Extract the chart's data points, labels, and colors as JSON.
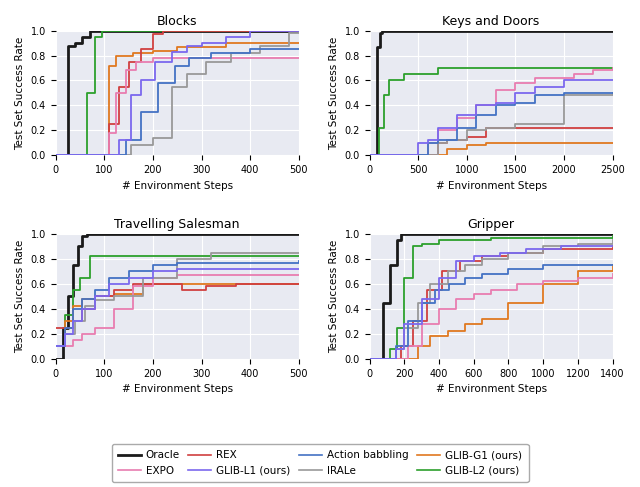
{
  "colors": {
    "Oracle": "#1a1a1a",
    "Action babbling": "#4472c4",
    "EXPO": "#e87db0",
    "IRALe": "#999999",
    "REX": "#d04040",
    "GLIB-G1": "#e07820",
    "GLIB-L1": "#7b68ee",
    "GLIB-L2": "#2ca02c"
  },
  "background_color": "#e8eaf2",
  "xlabel": "# Environment Steps",
  "ylabel": "Test Set Success Rate",
  "blocks": {
    "xlim": [
      0,
      500
    ],
    "ylim": [
      0.0,
      1.05
    ],
    "xticks": [
      0,
      100,
      200,
      300,
      400,
      500
    ],
    "yticks": [
      0.0,
      0.2,
      0.4,
      0.6,
      0.8,
      1.0
    ],
    "Oracle": [
      [
        0,
        0.0
      ],
      [
        25,
        0.88
      ],
      [
        40,
        0.9
      ],
      [
        55,
        0.95
      ],
      [
        70,
        1.0
      ],
      [
        500,
        1.0
      ]
    ],
    "GLIB-L2": [
      [
        0,
        0.0
      ],
      [
        50,
        0.0
      ],
      [
        65,
        0.5
      ],
      [
        80,
        0.95
      ],
      [
        95,
        1.0
      ],
      [
        500,
        1.0
      ]
    ],
    "REX": [
      [
        0,
        0.0
      ],
      [
        95,
        0.0
      ],
      [
        110,
        0.25
      ],
      [
        130,
        0.55
      ],
      [
        150,
        0.75
      ],
      [
        175,
        0.85
      ],
      [
        200,
        0.97
      ],
      [
        220,
        1.0
      ],
      [
        500,
        1.0
      ]
    ],
    "GLIB-G1": [
      [
        0,
        0.0
      ],
      [
        95,
        0.0
      ],
      [
        110,
        0.72
      ],
      [
        125,
        0.8
      ],
      [
        160,
        0.82
      ],
      [
        200,
        0.84
      ],
      [
        250,
        0.87
      ],
      [
        350,
        0.9
      ],
      [
        500,
        0.9
      ]
    ],
    "EXPO": [
      [
        0,
        0.0
      ],
      [
        95,
        0.0
      ],
      [
        110,
        0.18
      ],
      [
        125,
        0.5
      ],
      [
        145,
        0.68
      ],
      [
        165,
        0.75
      ],
      [
        200,
        0.78
      ],
      [
        500,
        0.78
      ]
    ],
    "GLIB-L1": [
      [
        0,
        0.0
      ],
      [
        105,
        0.0
      ],
      [
        130,
        0.12
      ],
      [
        155,
        0.48
      ],
      [
        175,
        0.6
      ],
      [
        205,
        0.75
      ],
      [
        240,
        0.83
      ],
      [
        270,
        0.88
      ],
      [
        300,
        0.9
      ],
      [
        350,
        0.95
      ],
      [
        400,
        1.0
      ],
      [
        500,
        1.0
      ]
    ],
    "Action babbling": [
      [
        0,
        0.0
      ],
      [
        115,
        0.0
      ],
      [
        145,
        0.12
      ],
      [
        175,
        0.35
      ],
      [
        210,
        0.58
      ],
      [
        245,
        0.72
      ],
      [
        275,
        0.78
      ],
      [
        320,
        0.82
      ],
      [
        400,
        0.85
      ],
      [
        500,
        0.85
      ]
    ],
    "IRALe": [
      [
        0,
        0.0
      ],
      [
        110,
        0.0
      ],
      [
        155,
        0.08
      ],
      [
        200,
        0.14
      ],
      [
        240,
        0.55
      ],
      [
        270,
        0.65
      ],
      [
        310,
        0.75
      ],
      [
        360,
        0.82
      ],
      [
        420,
        0.88
      ],
      [
        480,
        0.98
      ],
      [
        500,
        1.0
      ]
    ]
  },
  "keys": {
    "xlim": [
      0,
      2500
    ],
    "ylim": [
      0.0,
      1.05
    ],
    "xticks": [
      0,
      500,
      1000,
      1500,
      2000,
      2500
    ],
    "yticks": [
      0.0,
      0.2,
      0.4,
      0.6,
      0.8,
      1.0
    ],
    "Oracle": [
      [
        0,
        0.0
      ],
      [
        80,
        0.87
      ],
      [
        110,
        0.98
      ],
      [
        130,
        1.0
      ],
      [
        2500,
        1.0
      ]
    ],
    "GLIB-L2": [
      [
        0,
        0.0
      ],
      [
        100,
        0.22
      ],
      [
        150,
        0.48
      ],
      [
        200,
        0.6
      ],
      [
        350,
        0.65
      ],
      [
        500,
        0.65
      ],
      [
        700,
        0.7
      ],
      [
        1700,
        0.7
      ],
      [
        2500,
        0.7
      ]
    ],
    "EXPO": [
      [
        0,
        0.0
      ],
      [
        500,
        0.0
      ],
      [
        600,
        0.1
      ],
      [
        700,
        0.2
      ],
      [
        900,
        0.3
      ],
      [
        1100,
        0.4
      ],
      [
        1300,
        0.52
      ],
      [
        1500,
        0.58
      ],
      [
        1700,
        0.62
      ],
      [
        2100,
        0.65
      ],
      [
        2300,
        0.68
      ],
      [
        2500,
        0.7
      ]
    ],
    "GLIB-L1": [
      [
        0,
        0.0
      ],
      [
        400,
        0.0
      ],
      [
        500,
        0.1
      ],
      [
        600,
        0.12
      ],
      [
        700,
        0.22
      ],
      [
        900,
        0.32
      ],
      [
        1100,
        0.4
      ],
      [
        1300,
        0.42
      ],
      [
        1500,
        0.5
      ],
      [
        1700,
        0.55
      ],
      [
        2000,
        0.6
      ],
      [
        2500,
        0.6
      ]
    ],
    "Action babbling": [
      [
        0,
        0.0
      ],
      [
        500,
        0.0
      ],
      [
        600,
        0.1
      ],
      [
        700,
        0.12
      ],
      [
        900,
        0.22
      ],
      [
        1100,
        0.32
      ],
      [
        1300,
        0.4
      ],
      [
        1500,
        0.42
      ],
      [
        1700,
        0.48
      ],
      [
        2000,
        0.5
      ],
      [
        2500,
        0.5
      ]
    ],
    "IRALe": [
      [
        0,
        0.0
      ],
      [
        500,
        0.0
      ],
      [
        600,
        0.0
      ],
      [
        700,
        0.1
      ],
      [
        800,
        0.12
      ],
      [
        1000,
        0.2
      ],
      [
        1200,
        0.22
      ],
      [
        1500,
        0.25
      ],
      [
        2000,
        0.48
      ],
      [
        2500,
        0.5
      ]
    ],
    "REX": [
      [
        0,
        0.0
      ],
      [
        600,
        0.0
      ],
      [
        700,
        0.1
      ],
      [
        800,
        0.12
      ],
      [
        1000,
        0.15
      ],
      [
        1200,
        0.22
      ],
      [
        1500,
        0.22
      ],
      [
        2500,
        0.22
      ]
    ],
    "GLIB-G1": [
      [
        0,
        0.0
      ],
      [
        700,
        0.0
      ],
      [
        800,
        0.05
      ],
      [
        1000,
        0.08
      ],
      [
        1200,
        0.1
      ],
      [
        1500,
        0.1
      ],
      [
        2000,
        0.1
      ],
      [
        2500,
        0.1
      ]
    ]
  },
  "tsp": {
    "xlim": [
      0,
      500
    ],
    "ylim": [
      0.0,
      1.05
    ],
    "xticks": [
      0,
      100,
      200,
      300,
      400,
      500
    ],
    "yticks": [
      0.0,
      0.2,
      0.4,
      0.6,
      0.8,
      1.0
    ],
    "Oracle": [
      [
        0,
        0.0
      ],
      [
        15,
        0.25
      ],
      [
        25,
        0.5
      ],
      [
        35,
        0.75
      ],
      [
        45,
        0.9
      ],
      [
        55,
        0.98
      ],
      [
        65,
        1.0
      ],
      [
        500,
        1.0
      ]
    ],
    "GLIB-L2": [
      [
        0,
        0.1
      ],
      [
        20,
        0.35
      ],
      [
        35,
        0.55
      ],
      [
        50,
        0.65
      ],
      [
        70,
        0.82
      ],
      [
        90,
        0.82
      ],
      [
        500,
        0.82
      ]
    ],
    "IRALe": [
      [
        0,
        0.1
      ],
      [
        20,
        0.2
      ],
      [
        40,
        0.3
      ],
      [
        60,
        0.42
      ],
      [
        80,
        0.47
      ],
      [
        120,
        0.5
      ],
      [
        180,
        0.65
      ],
      [
        250,
        0.8
      ],
      [
        320,
        0.85
      ],
      [
        500,
        0.85
      ]
    ],
    "Action babbling": [
      [
        0,
        0.1
      ],
      [
        20,
        0.25
      ],
      [
        35,
        0.4
      ],
      [
        55,
        0.48
      ],
      [
        80,
        0.55
      ],
      [
        110,
        0.65
      ],
      [
        150,
        0.7
      ],
      [
        200,
        0.75
      ],
      [
        250,
        0.77
      ],
      [
        500,
        0.78
      ]
    ],
    "GLIB-L1": [
      [
        0,
        0.1
      ],
      [
        20,
        0.2
      ],
      [
        35,
        0.3
      ],
      [
        55,
        0.4
      ],
      [
        80,
        0.5
      ],
      [
        110,
        0.6
      ],
      [
        150,
        0.65
      ],
      [
        200,
        0.7
      ],
      [
        250,
        0.72
      ],
      [
        500,
        0.72
      ]
    ],
    "GLIB-G1": [
      [
        0,
        0.1
      ],
      [
        20,
        0.3
      ],
      [
        35,
        0.42
      ],
      [
        55,
        0.48
      ],
      [
        80,
        0.5
      ],
      [
        120,
        0.52
      ],
      [
        180,
        0.6
      ],
      [
        500,
        0.6
      ]
    ],
    "EXPO": [
      [
        0,
        0.1
      ],
      [
        20,
        0.1
      ],
      [
        35,
        0.15
      ],
      [
        55,
        0.2
      ],
      [
        80,
        0.25
      ],
      [
        120,
        0.4
      ],
      [
        160,
        0.58
      ],
      [
        200,
        0.65
      ],
      [
        250,
        0.67
      ],
      [
        500,
        0.67
      ]
    ],
    "REX": [
      [
        0,
        0.25
      ],
      [
        20,
        0.25
      ],
      [
        35,
        0.3
      ],
      [
        55,
        0.4
      ],
      [
        80,
        0.5
      ],
      [
        120,
        0.55
      ],
      [
        160,
        0.6
      ],
      [
        200,
        0.6
      ],
      [
        260,
        0.55
      ],
      [
        310,
        0.58
      ],
      [
        370,
        0.6
      ],
      [
        500,
        0.6
      ]
    ]
  },
  "gripper": {
    "xlim": [
      0,
      1400
    ],
    "ylim": [
      0.0,
      1.05
    ],
    "xticks": [
      0,
      200,
      400,
      600,
      800,
      1000,
      1200,
      1400
    ],
    "yticks": [
      0.0,
      0.2,
      0.4,
      0.6,
      0.8,
      1.0
    ],
    "Oracle": [
      [
        0,
        0.0
      ],
      [
        80,
        0.45
      ],
      [
        120,
        0.75
      ],
      [
        160,
        0.95
      ],
      [
        180,
        1.0
      ],
      [
        1400,
        1.0
      ]
    ],
    "GLIB-L2": [
      [
        0,
        0.0
      ],
      [
        80,
        0.0
      ],
      [
        120,
        0.08
      ],
      [
        160,
        0.25
      ],
      [
        200,
        0.65
      ],
      [
        250,
        0.9
      ],
      [
        300,
        0.92
      ],
      [
        400,
        0.95
      ],
      [
        500,
        0.95
      ],
      [
        700,
        0.97
      ],
      [
        1400,
        0.98
      ]
    ],
    "IRALe": [
      [
        0,
        0.0
      ],
      [
        80,
        0.0
      ],
      [
        150,
        0.08
      ],
      [
        200,
        0.25
      ],
      [
        280,
        0.45
      ],
      [
        350,
        0.6
      ],
      [
        450,
        0.7
      ],
      [
        550,
        0.75
      ],
      [
        650,
        0.8
      ],
      [
        800,
        0.85
      ],
      [
        1000,
        0.9
      ],
      [
        1200,
        0.92
      ],
      [
        1400,
        0.95
      ]
    ],
    "GLIB-L1": [
      [
        0,
        0.0
      ],
      [
        80,
        0.0
      ],
      [
        150,
        0.08
      ],
      [
        200,
        0.28
      ],
      [
        300,
        0.48
      ],
      [
        400,
        0.65
      ],
      [
        500,
        0.78
      ],
      [
        600,
        0.82
      ],
      [
        750,
        0.85
      ],
      [
        900,
        0.88
      ],
      [
        1100,
        0.9
      ],
      [
        1400,
        0.9
      ]
    ],
    "REX": [
      [
        0,
        0.0
      ],
      [
        100,
        0.0
      ],
      [
        180,
        0.1
      ],
      [
        250,
        0.3
      ],
      [
        330,
        0.55
      ],
      [
        420,
        0.7
      ],
      [
        520,
        0.78
      ],
      [
        650,
        0.82
      ],
      [
        800,
        0.85
      ],
      [
        1000,
        0.88
      ],
      [
        1400,
        0.9
      ]
    ],
    "Action babbling": [
      [
        0,
        0.0
      ],
      [
        80,
        0.0
      ],
      [
        150,
        0.1
      ],
      [
        220,
        0.3
      ],
      [
        300,
        0.45
      ],
      [
        380,
        0.55
      ],
      [
        460,
        0.6
      ],
      [
        550,
        0.65
      ],
      [
        650,
        0.68
      ],
      [
        800,
        0.72
      ],
      [
        1000,
        0.75
      ],
      [
        1200,
        0.75
      ],
      [
        1400,
        0.75
      ]
    ],
    "EXPO": [
      [
        0,
        0.0
      ],
      [
        150,
        0.0
      ],
      [
        220,
        0.1
      ],
      [
        300,
        0.28
      ],
      [
        400,
        0.4
      ],
      [
        500,
        0.48
      ],
      [
        600,
        0.52
      ],
      [
        700,
        0.55
      ],
      [
        850,
        0.6
      ],
      [
        1000,
        0.62
      ],
      [
        1200,
        0.65
      ],
      [
        1400,
        0.68
      ]
    ],
    "GLIB-G1": [
      [
        0,
        0.0
      ],
      [
        200,
        0.0
      ],
      [
        280,
        0.1
      ],
      [
        350,
        0.18
      ],
      [
        450,
        0.22
      ],
      [
        550,
        0.28
      ],
      [
        650,
        0.32
      ],
      [
        800,
        0.45
      ],
      [
        1000,
        0.6
      ],
      [
        1200,
        0.7
      ],
      [
        1400,
        0.75
      ]
    ]
  },
  "legend": [
    {
      "label": "Oracle",
      "color": "#1a1a1a",
      "lw": 2.0
    },
    {
      "label": "EXPO",
      "color": "#e87db0",
      "lw": 1.2
    },
    {
      "label": "REX",
      "color": "#d04040",
      "lw": 1.2
    },
    {
      "label": "GLIB-L1 (ours)",
      "color": "#7b68ee",
      "lw": 1.2
    },
    {
      "label": "Action babbling",
      "color": "#4472c4",
      "lw": 1.2
    },
    {
      "label": "IRALe",
      "color": "#999999",
      "lw": 1.2
    },
    {
      "label": "GLIB-G1 (ours)",
      "color": "#e07820",
      "lw": 1.2
    },
    {
      "label": "GLIB-L2 (ours)",
      "color": "#2ca02c",
      "lw": 1.2
    }
  ]
}
